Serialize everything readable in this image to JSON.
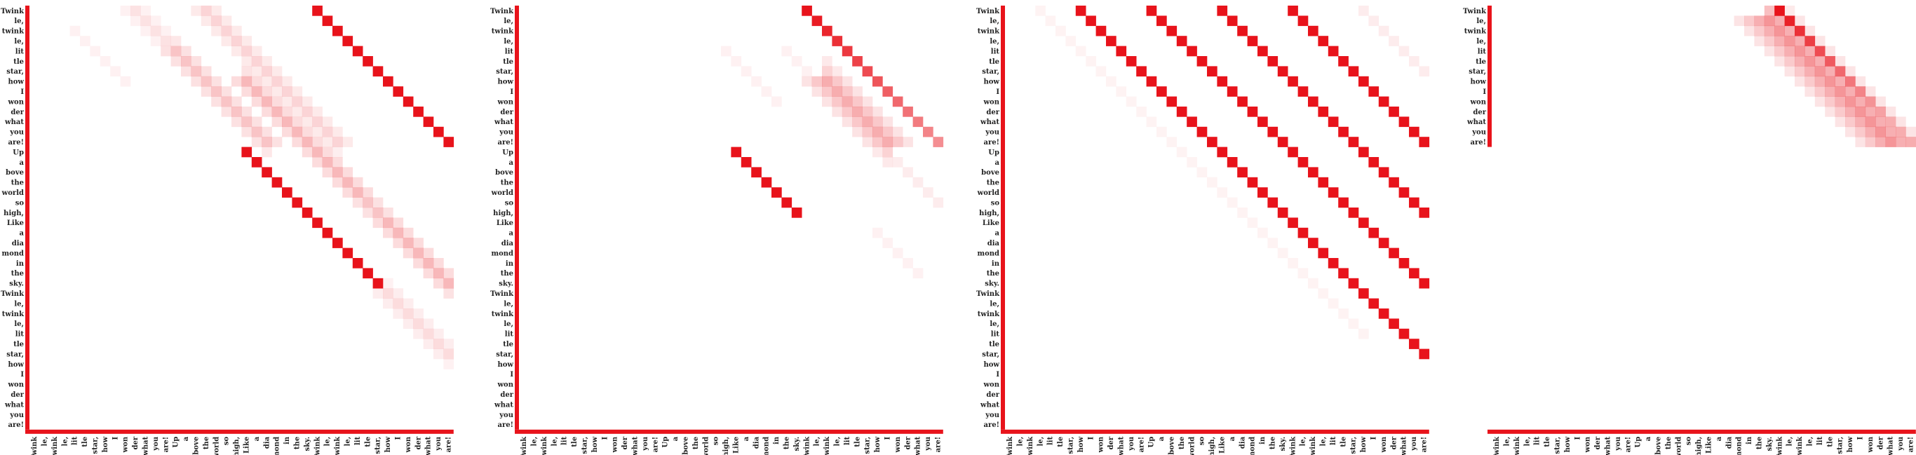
{
  "tokens": [
    "Twink",
    "le,",
    "twink",
    "le,",
    "lit",
    "tle",
    "star,",
    "how",
    "I",
    "won",
    "der",
    "what",
    "you",
    "are!",
    "Up",
    "a",
    "bove",
    "the",
    "world",
    "so",
    "high,",
    "Like",
    "a",
    "dia",
    "mond",
    "in",
    "the",
    "sky.",
    "Twink",
    "le,",
    "twink",
    "le,",
    "lit",
    "tle",
    "star,",
    "how",
    "I",
    "won",
    "der",
    "what",
    "you",
    "are!"
  ],
  "colors": {
    "cell": "#e8131b",
    "axis_bar": "#e8131b",
    "text": "#222222",
    "background": "#ffffff"
  },
  "chart_data": [
    {
      "type": "heatmap",
      "panel": 1,
      "x_tokens_count": 42,
      "y_tokens_count": 42,
      "grid": false,
      "description_of_values": "attention weights 0-1 per (query row, key column)",
      "strong_diagonals": [
        {
          "row_start": 0,
          "col_start": 28,
          "length": 14,
          "weight": 1.0,
          "fade": 0.0
        },
        {
          "row_start": 14,
          "col_start": 21,
          "length": 14,
          "weight": 1.0,
          "fade": 0.0
        }
      ],
      "soft_diagonals": [
        {
          "row_start": 0,
          "col_start": 10,
          "length": 14,
          "weight": 0.12,
          "spread": 1
        },
        {
          "row_start": 0,
          "col_start": 17,
          "length": 14,
          "weight": 0.18,
          "spread": 1
        },
        {
          "row_start": 4,
          "col_start": 14,
          "length": 10,
          "weight": 0.25,
          "spread": 1
        },
        {
          "row_start": 7,
          "col_start": 21,
          "length": 12,
          "weight": 0.3,
          "spread": 1
        },
        {
          "row_start": 14,
          "col_start": 28,
          "length": 14,
          "weight": 0.25,
          "spread": 1
        },
        {
          "row_start": 21,
          "col_start": 35,
          "length": 7,
          "weight": 0.3,
          "spread": 1
        },
        {
          "row_start": 28,
          "col_start": 35,
          "length": 7,
          "weight": 0.15,
          "spread": 1
        },
        {
          "row_start": 2,
          "col_start": 4,
          "length": 6,
          "weight": 0.06,
          "spread": 0
        }
      ]
    },
    {
      "type": "heatmap",
      "panel": 2,
      "x_tokens_count": 42,
      "y_tokens_count": 42,
      "grid": false,
      "strong_diagonals": [
        {
          "row_start": 0,
          "col_start": 28,
          "length": 14,
          "weight": 1.0,
          "fade": 0.04
        },
        {
          "row_start": 14,
          "col_start": 21,
          "length": 7,
          "weight": 1.0,
          "fade": 0.0
        }
      ],
      "soft_diagonals": [
        {
          "row_start": 7,
          "col_start": 30,
          "length": 7,
          "weight": 0.35,
          "spread": 2
        },
        {
          "row_start": 4,
          "col_start": 20,
          "length": 6,
          "weight": 0.06,
          "spread": 0
        },
        {
          "row_start": 4,
          "col_start": 26,
          "length": 6,
          "weight": 0.06,
          "spread": 0
        },
        {
          "row_start": 15,
          "col_start": 37,
          "length": 5,
          "weight": 0.08,
          "spread": 0
        },
        {
          "row_start": 22,
          "col_start": 35,
          "length": 5,
          "weight": 0.06,
          "spread": 0
        }
      ]
    },
    {
      "type": "heatmap",
      "panel": 3,
      "x_tokens_count": 42,
      "y_tokens_count": 42,
      "grid": false,
      "strong_diagonals": [
        {
          "row_start": 0,
          "col_start": 7,
          "length": 35,
          "weight": 1.0,
          "fade": 0.0
        },
        {
          "row_start": 0,
          "col_start": 14,
          "length": 28,
          "weight": 1.0,
          "fade": 0.0
        },
        {
          "row_start": 0,
          "col_start": 21,
          "length": 21,
          "weight": 1.0,
          "fade": 0.0
        },
        {
          "row_start": 0,
          "col_start": 28,
          "length": 14,
          "weight": 1.0,
          "fade": 0.0
        }
      ],
      "soft_diagonals": [
        {
          "row_start": 0,
          "col_start": 3,
          "length": 10,
          "weight": 0.05,
          "spread": 0
        },
        {
          "row_start": 0,
          "col_start": 35,
          "length": 7,
          "weight": 0.08,
          "spread": 0
        },
        {
          "row_start": 8,
          "col_start": 11,
          "length": 25,
          "weight": 0.05,
          "spread": 0
        }
      ]
    },
    {
      "type": "heatmap",
      "panel": 4,
      "x_tokens_count": 42,
      "y_tokens_count": 14,
      "grid": false,
      "strong_diagonals": [
        {
          "row_start": 0,
          "col_start": 28,
          "length": 14,
          "weight": 1.0,
          "fade": 0.06
        }
      ],
      "soft_diagonals": [
        {
          "row_start": 1,
          "col_start": 27,
          "length": 13,
          "weight": 0.45,
          "spread": 3
        },
        {
          "row_start": 15,
          "col_start": 20,
          "length": 1,
          "weight": 0.1,
          "spread": 0
        }
      ]
    }
  ]
}
